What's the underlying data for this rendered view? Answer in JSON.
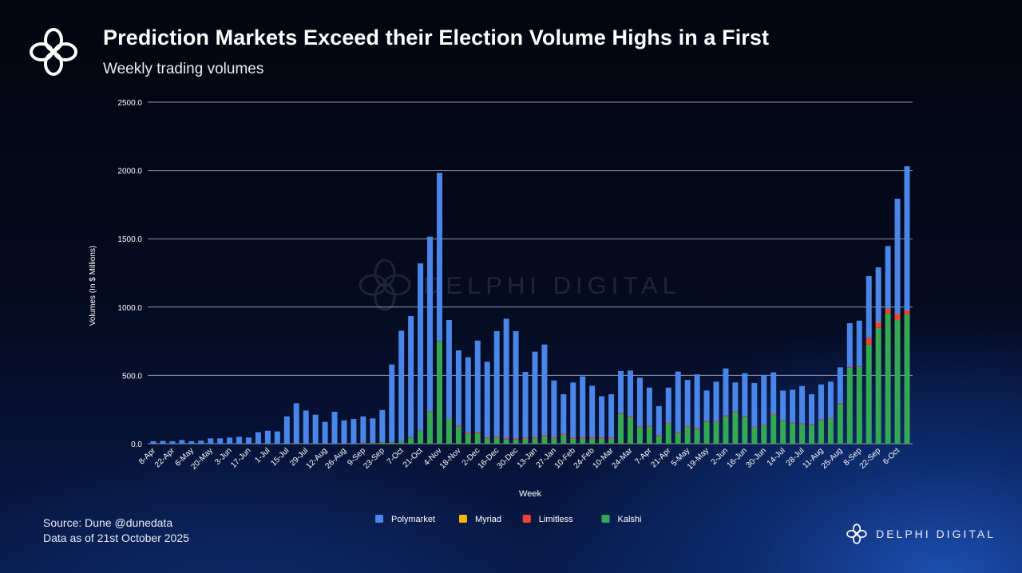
{
  "header": {
    "title": "Prediction Markets Exceed their Election Volume Highs in a First",
    "subtitle": "Weekly trading volumes"
  },
  "footer": {
    "source": "Source: Dune @dunedata",
    "data_as_of": "Data as of 21st October 2025",
    "brand": "DELPHI DIGITAL"
  },
  "watermark": "DELPHI DIGITAL",
  "chart_data": {
    "type": "bar",
    "stacked": true,
    "xlabel": "Week",
    "ylabel": "Volumes (In $ Millions)",
    "ylim": [
      0,
      2500
    ],
    "yticks": [
      "0.0",
      "500.0",
      "1000.0",
      "1500.0",
      "2000.0",
      "2500.0"
    ],
    "grid": true,
    "legend": "bottom",
    "categories": [
      "8-Apr",
      "15-Apr",
      "22-Apr",
      "29-Apr",
      "6-May",
      "13-May",
      "20-May",
      "27-May",
      "3-Jun",
      "10-Jun",
      "17-Jun",
      "24-Jun",
      "1-Jul",
      "8-Jul",
      "15-Jul",
      "22-Jul",
      "29-Jul",
      "5-Aug",
      "12-Aug",
      "19-Aug",
      "26-Aug",
      "2-Sep",
      "9-Sep",
      "16-Sep",
      "23-Sep",
      "30-Sep",
      "7-Oct",
      "14-Oct",
      "21-Oct",
      "28-Oct",
      "4-Nov",
      "11-Nov",
      "18-Nov",
      "25-Nov",
      "2-Dec",
      "9-Dec",
      "16-Dec",
      "23-Dec",
      "30-Dec",
      "6-Jan",
      "13-Jan",
      "20-Jan",
      "27-Jan",
      "3-Feb",
      "10-Feb",
      "17-Feb",
      "24-Feb",
      "3-Mar",
      "10-Mar",
      "17-Mar",
      "24-Mar",
      "31-Mar",
      "7-Apr",
      "14-Apr",
      "21-Apr",
      "28-Apr",
      "5-May",
      "12-May",
      "19-May",
      "26-May",
      "2-Jun",
      "9-Jun",
      "16-Jun",
      "23-Jun",
      "30-Jun",
      "7-Jul",
      "14-Jul",
      "21-Jul",
      "28-Jul",
      "4-Aug",
      "11-Aug",
      "18-Aug",
      "25-Aug",
      "1-Sep",
      "8-Sep",
      "15-Sep",
      "22-Sep",
      "29-Sep",
      "6-Oct",
      "13-Oct"
    ],
    "tick_every": 2,
    "series": [
      {
        "name": "Kalshi",
        "color": "#34a853",
        "values": [
          0,
          0,
          0,
          0,
          0,
          0,
          0,
          0,
          0,
          0,
          0,
          0,
          0,
          0,
          0,
          0,
          0,
          0,
          0,
          0,
          0,
          0,
          5,
          5,
          8,
          10,
          15,
          45,
          93,
          234,
          750,
          181,
          123,
          74,
          78,
          39,
          45,
          31,
          31,
          35,
          39,
          55,
          39,
          64,
          39,
          39,
          39,
          39,
          35,
          220,
          195,
          120,
          123,
          58,
          146,
          78,
          123,
          107,
          162,
          158,
          200,
          230,
          197,
          117,
          132,
          210,
          167,
          148,
          142,
          138,
          171,
          181,
          290,
          556,
          561,
          726,
          849,
          954,
          905,
          946
        ]
      },
      {
        "name": "Limitless",
        "color": "#ea4335",
        "values": [
          0,
          0,
          0,
          0,
          0,
          0,
          0,
          0,
          0,
          0,
          0,
          0,
          0,
          0,
          0,
          0,
          0,
          0,
          0,
          0,
          0,
          0,
          3,
          3,
          3,
          3,
          3,
          3,
          3,
          3,
          3,
          3,
          8,
          8,
          8,
          8,
          8,
          8,
          8,
          8,
          8,
          8,
          8,
          8,
          8,
          8,
          8,
          8,
          8,
          6,
          6,
          6,
          6,
          6,
          6,
          6,
          6,
          6,
          6,
          6,
          6,
          6,
          6,
          6,
          6,
          6,
          6,
          6,
          6,
          6,
          6,
          6,
          6,
          5,
          5,
          49,
          39,
          31,
          45,
          29
        ]
      },
      {
        "name": "Myriad",
        "color": "#f4b400",
        "values": [
          0,
          0,
          0,
          0,
          0,
          0,
          0,
          0,
          0,
          0,
          0,
          0,
          0,
          0,
          0,
          0,
          0,
          0,
          0,
          0,
          0,
          0,
          0,
          0,
          0,
          0,
          0,
          0,
          0,
          0,
          0,
          0,
          0,
          0,
          0,
          0,
          0,
          0,
          0,
          0,
          0,
          0,
          0,
          0,
          0,
          0,
          0,
          0,
          0,
          0,
          0,
          0,
          0,
          0,
          0,
          0,
          0,
          0,
          0,
          0,
          0,
          0,
          0,
          0,
          0,
          0,
          0,
          0,
          0,
          0,
          0,
          0,
          0,
          0,
          0,
          0,
          3,
          3,
          3,
          3
        ]
      },
      {
        "name": "Polymarket",
        "color": "#4a86e8",
        "values": [
          18,
          20,
          18,
          27,
          18,
          23,
          39,
          39,
          45,
          51,
          45,
          84,
          95,
          90,
          200,
          296,
          243,
          212,
          160,
          234,
          171,
          181,
          192,
          177,
          236,
          567,
          809,
          887,
          1224,
          1278,
          1229,
          721,
          552,
          551,
          669,
          553,
          771,
          876,
          785,
          483,
          627,
          663,
          416,
          290,
          401,
          446,
          377,
          300,
          319,
          306,
          334,
          357,
          282,
          211,
          259,
          444,
          338,
          395,
          221,
          290,
          345,
          212,
          313,
          321,
          364,
          306,
          216,
          241,
          274,
          218,
          257,
          267,
          263,
          321,
          335,
          452,
          400,
          459,
          840,
          1053
        ]
      }
    ],
    "legend_order": [
      "Polymarket",
      "Myriad",
      "Limitless",
      "Kalshi"
    ]
  }
}
